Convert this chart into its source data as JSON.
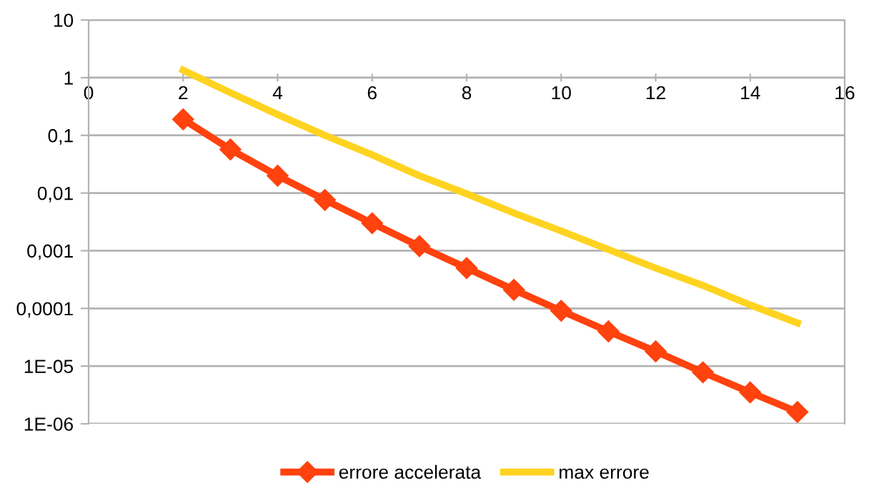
{
  "chart_data": {
    "type": "line",
    "x": [
      2,
      3,
      4,
      5,
      6,
      7,
      8,
      9,
      10,
      11,
      12,
      13,
      14,
      15
    ],
    "series": [
      {
        "name": "errore accelerata",
        "color": "#ff420e",
        "marker": "diamond",
        "values": [
          0.19,
          0.057,
          0.02,
          0.0076,
          0.003,
          0.0012,
          0.0005,
          0.00021,
          9.1e-05,
          4e-05,
          1.8e-05,
          7.8e-06,
          3.5e-06,
          1.6e-06
        ]
      },
      {
        "name": "max errore",
        "color": "#ffd320",
        "marker": "none",
        "values": [
          1.35,
          0.55,
          0.23,
          0.1,
          0.046,
          0.02,
          0.0097,
          0.0045,
          0.0022,
          0.00105,
          0.0005,
          0.00025,
          0.000115,
          5.6e-05
        ]
      }
    ],
    "log": "y",
    "xlim": [
      0,
      16
    ],
    "xticks": [
      0,
      2,
      4,
      6,
      8,
      10,
      12,
      14,
      16
    ],
    "ylim": [
      1e-06,
      10
    ],
    "yticks": [
      {
        "value": 10,
        "label": "10"
      },
      {
        "value": 1,
        "label": "1"
      },
      {
        "value": 0.1,
        "label": "0,1"
      },
      {
        "value": 0.01,
        "label": "0,01"
      },
      {
        "value": 0.001,
        "label": "0,001"
      },
      {
        "value": 0.0001,
        "label": "0,0001"
      },
      {
        "value": 1e-05,
        "label": "1E-05"
      },
      {
        "value": 1e-06,
        "label": "1E-06"
      }
    ],
    "grid": "y",
    "legend": "bottom",
    "line_style": "solid"
  }
}
